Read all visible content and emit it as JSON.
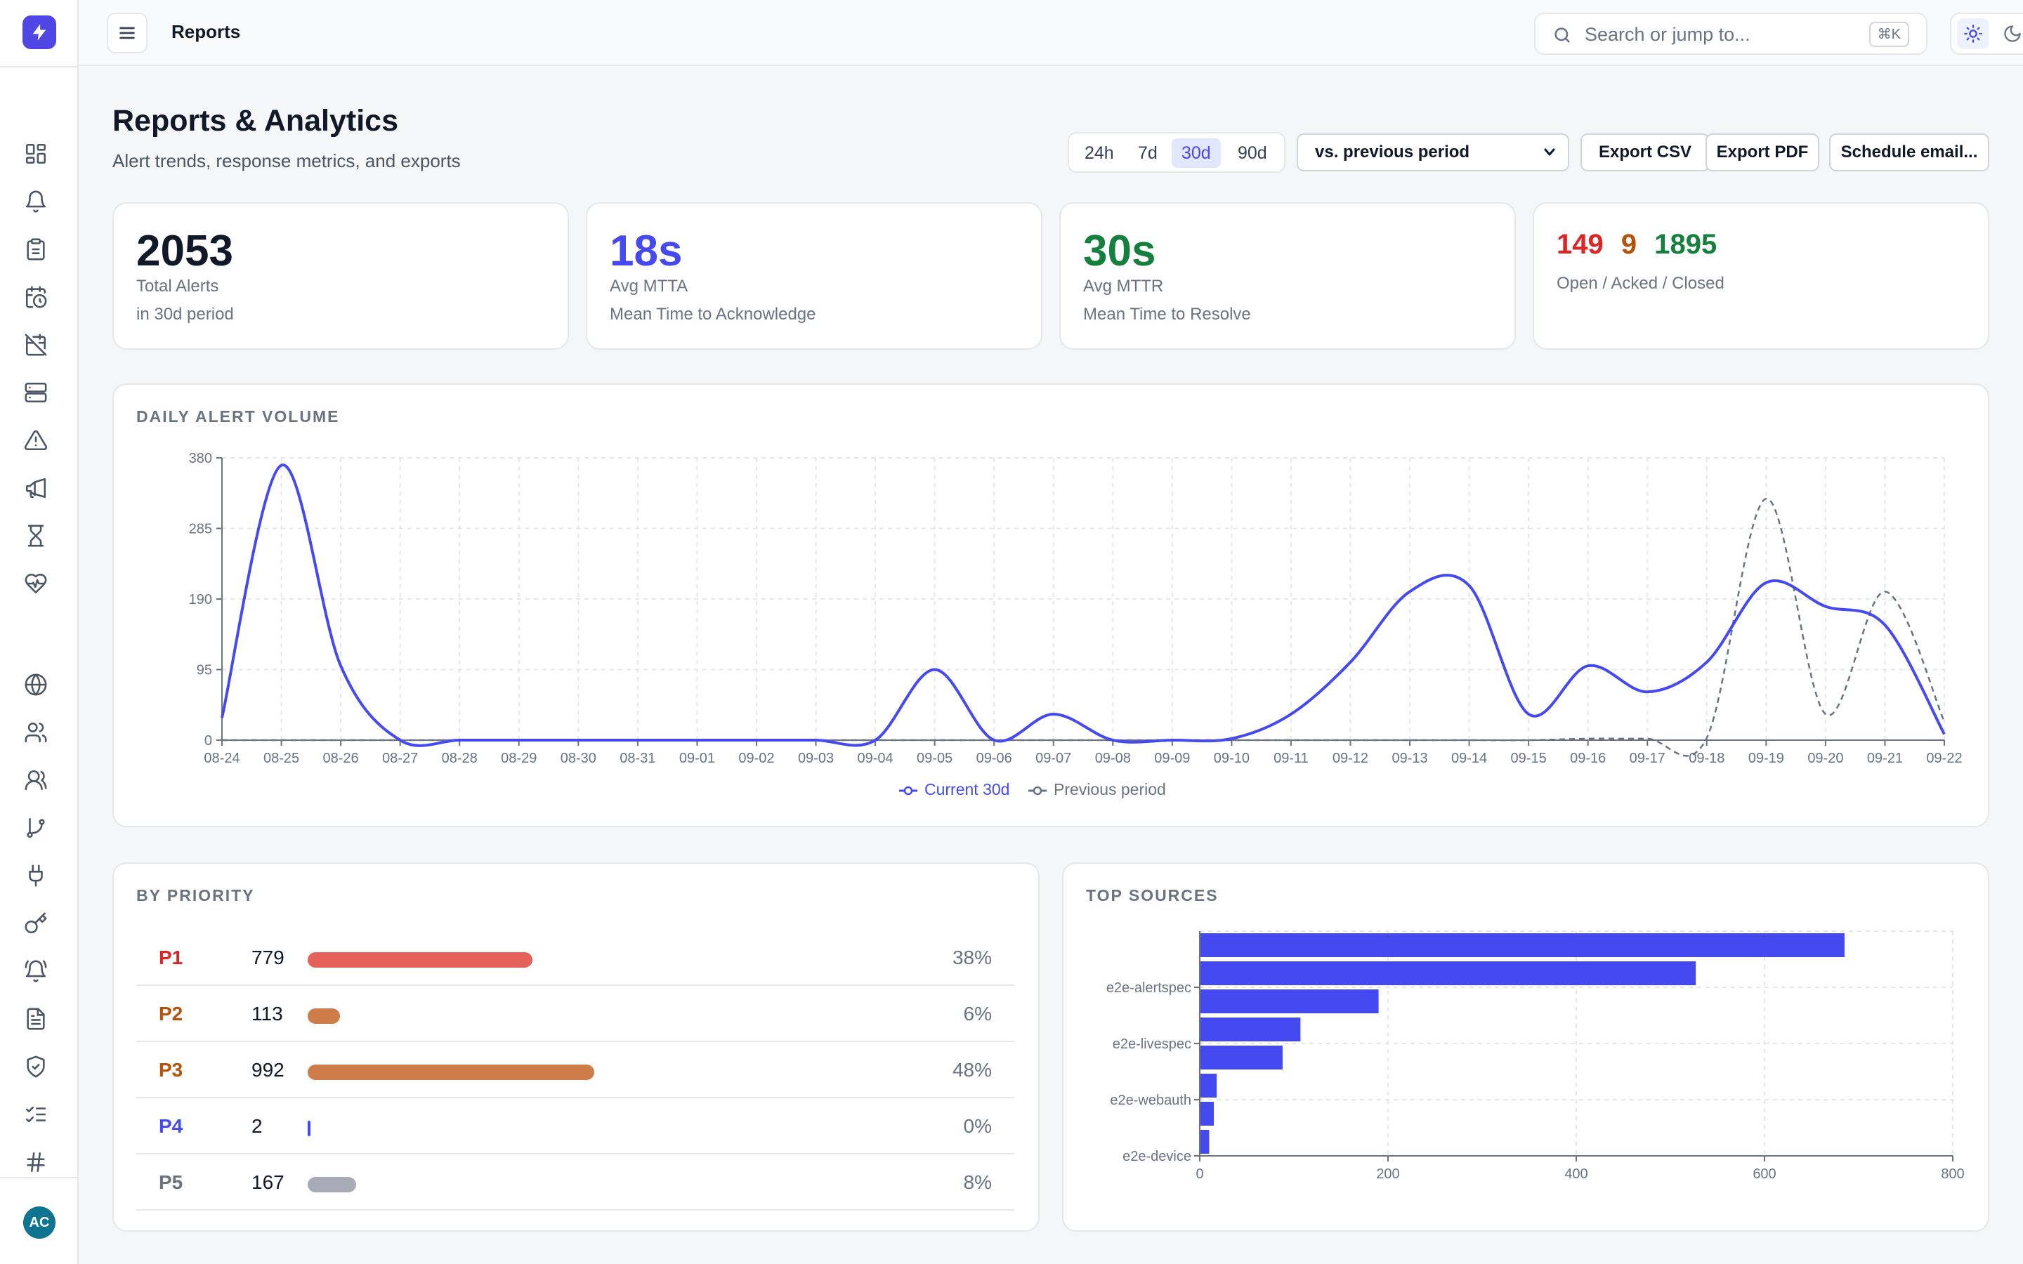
{
  "topbar": {
    "breadcrumb": "Reports",
    "search_placeholder": "Search or jump to...",
    "search_shortcut": "⌘K"
  },
  "user": {
    "initials": "AC"
  },
  "header": {
    "title": "Reports & Analytics",
    "subtitle": "Alert trends, response metrics, and exports",
    "ranges": [
      "24h",
      "7d",
      "30d",
      "90d"
    ],
    "active_range": "30d",
    "compare_select": "vs. previous period",
    "export_csv": "Export CSV",
    "export_pdf": "Export PDF",
    "schedule": "Schedule email..."
  },
  "stats": {
    "total": {
      "value": "2053",
      "label": "Total Alerts",
      "sub": "in 30d period"
    },
    "mtta": {
      "value": "18s",
      "label": "Avg MTTA",
      "sub": "Mean Time to Acknowledge"
    },
    "mttr": {
      "value": "30s",
      "label": "Avg MTTR",
      "sub": "Mean Time to Resolve"
    },
    "status": {
      "open": "149",
      "acked": "9",
      "closed": "1895",
      "label": "Open / Acked / Closed"
    }
  },
  "colors": {
    "accent": "#4549f0",
    "open": "#dc2626",
    "acked": "#b45309",
    "closed": "#15803d",
    "previous": "#6b7280"
  },
  "daily_volume": {
    "title": "DAILY ALERT VOLUME",
    "legend_current": "Current 30d",
    "legend_previous": "Previous period"
  },
  "priority": {
    "title": "BY PRIORITY",
    "rows": [
      {
        "name": "P1",
        "count": "779",
        "pct": "38%",
        "value": 779,
        "color": "#e5625b",
        "text_color": "#dc2626"
      },
      {
        "name": "P2",
        "count": "113",
        "pct": "6%",
        "value": 113,
        "color": "#cd7c4a",
        "text_color": "#b45309"
      },
      {
        "name": "P3",
        "count": "992",
        "pct": "48%",
        "value": 992,
        "color": "#cd7c4a",
        "text_color": "#b45309"
      },
      {
        "name": "P4",
        "count": "2",
        "pct": "0%",
        "value": 2,
        "color": "#4549f0",
        "text_color": "#4549f0"
      },
      {
        "name": "P5",
        "count": "167",
        "pct": "8%",
        "value": 167,
        "color": "#a8abb6",
        "text_color": "#6b7280"
      }
    ]
  },
  "top_sources": {
    "title": "TOP SOURCES"
  },
  "chart_data": [
    {
      "type": "line",
      "title": "DAILY ALERT VOLUME",
      "categories": [
        "08-24",
        "08-25",
        "08-26",
        "08-27",
        "08-28",
        "08-29",
        "08-30",
        "08-31",
        "09-01",
        "09-02",
        "09-03",
        "09-04",
        "09-05",
        "09-06",
        "09-07",
        "09-08",
        "09-09",
        "09-10",
        "09-11",
        "09-12",
        "09-13",
        "09-14",
        "09-15",
        "09-16",
        "09-17",
        "09-18",
        "09-19",
        "09-20",
        "09-21",
        "09-22"
      ],
      "yticks": [
        0,
        95,
        190,
        285,
        380
      ],
      "ylim": [
        0,
        380
      ],
      "grid": true,
      "legend": "bottom",
      "series": [
        {
          "name": "Current 30d",
          "color": "#4549f0",
          "style": "solid",
          "values": [
            30,
            370,
            100,
            0,
            0,
            0,
            0,
            0,
            0,
            0,
            0,
            0,
            95,
            0,
            35,
            0,
            0,
            2,
            35,
            105,
            200,
            208,
            35,
            100,
            65,
            105,
            212,
            180,
            155,
            8
          ]
        },
        {
          "name": "Previous period",
          "color": "#6b7280",
          "style": "dashed",
          "values": [
            0,
            0,
            0,
            0,
            0,
            0,
            0,
            0,
            0,
            0,
            0,
            0,
            0,
            0,
            0,
            0,
            0,
            0,
            0,
            0,
            0,
            0,
            0,
            2,
            2,
            3,
            325,
            35,
            200,
            25
          ]
        }
      ]
    },
    {
      "type": "bar",
      "orientation": "horizontal",
      "title": "TOP SOURCES",
      "categories": [
        "",
        "e2e-alertspec",
        "",
        "e2e-livespec",
        "",
        "e2e-webauth",
        "",
        "e2e-device"
      ],
      "values": [
        685,
        527,
        190,
        107,
        88,
        18,
        15,
        10
      ],
      "xticks": [
        0,
        200,
        400,
        600,
        800
      ],
      "xlim": [
        0,
        800
      ],
      "grid": true
    }
  ]
}
